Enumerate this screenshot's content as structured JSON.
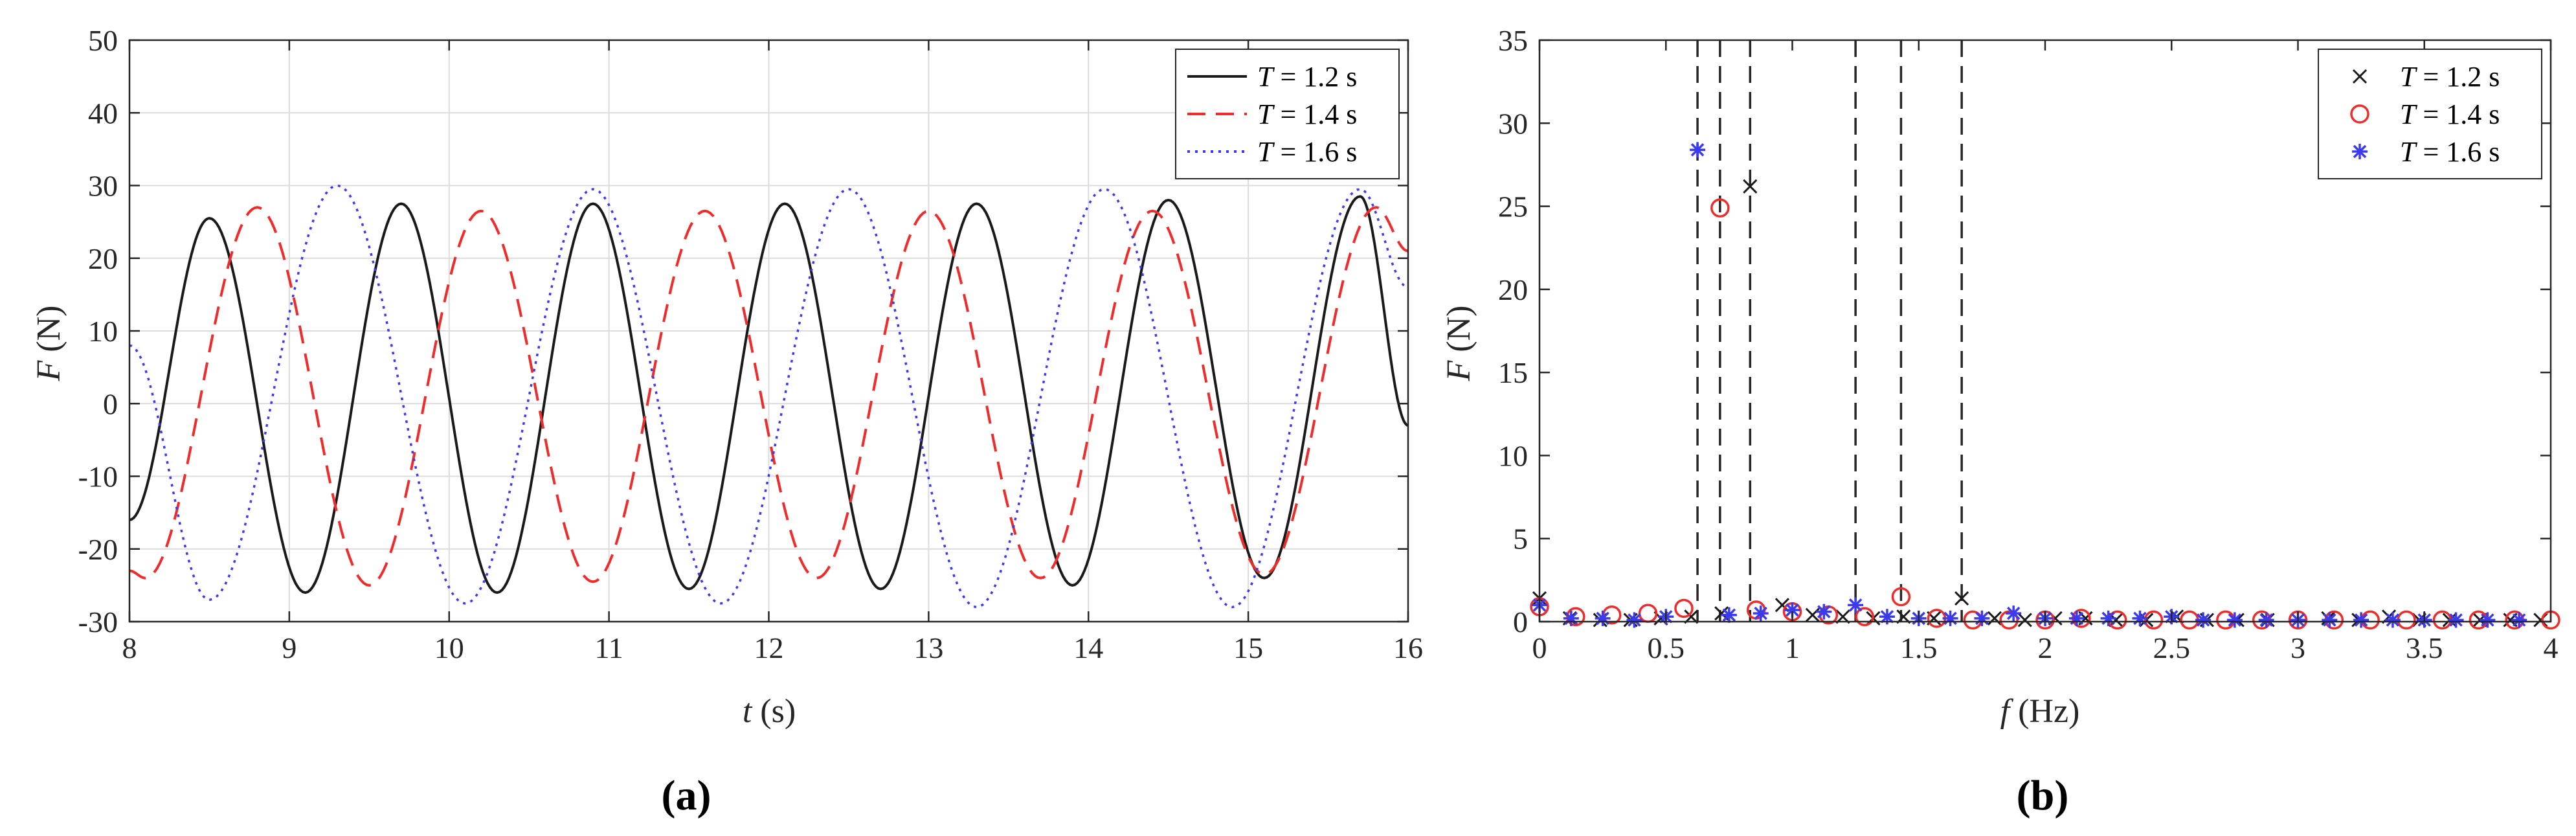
{
  "colors": {
    "black": "#1a1a1a",
    "red": "#ee2c2c",
    "blue": "#3a3af0",
    "grid": "#dcdcdc",
    "axis": "#262626"
  },
  "chart_data": [
    {
      "panel": "(a)",
      "type": "line",
      "xlabel": "t (s)",
      "ylabel": "F (N)",
      "xlim": [
        8,
        16
      ],
      "ylim": [
        -30,
        50
      ],
      "xticks": [
        8,
        9,
        10,
        11,
        12,
        13,
        14,
        15,
        16
      ],
      "yticks": [
        -30,
        -20,
        -10,
        0,
        10,
        20,
        30,
        40,
        50
      ],
      "grid": true,
      "legend_position": "top-right",
      "series": [
        {
          "name": "T = 1.2 s",
          "style": "solid",
          "color": "#1a1a1a",
          "x": [
            8.0,
            8.5,
            9.1,
            9.7,
            10.3,
            10.9,
            11.5,
            12.1,
            12.7,
            13.3,
            13.9,
            14.5,
            15.1,
            15.7,
            16.0
          ],
          "y": [
            -16,
            25.5,
            -26,
            27.5,
            -26,
            27.5,
            -25.5,
            27.5,
            -25.5,
            27.5,
            -25,
            28,
            -24,
            28.5,
            -3
          ]
        },
        {
          "name": "T = 1.4 s",
          "style": "dashed",
          "color": "#ee2c2c",
          "x": [
            8.0,
            8.1,
            8.8,
            9.5,
            10.2,
            10.9,
            11.6,
            12.3,
            13.0,
            13.7,
            14.4,
            15.1,
            15.8,
            16.0
          ],
          "y": [
            -23,
            -24,
            27,
            -25,
            26.5,
            -24.5,
            26.5,
            -24,
            26.5,
            -24,
            26.5,
            -23.5,
            27,
            21
          ]
        },
        {
          "name": "T = 1.6 s",
          "style": "dotted",
          "color": "#3a3af0",
          "x": [
            8.0,
            8.5,
            9.3,
            10.1,
            10.9,
            11.7,
            12.5,
            13.3,
            14.1,
            14.9,
            15.7,
            16.0
          ],
          "y": [
            8,
            -27,
            30,
            -27.5,
            29.5,
            -27.5,
            29.5,
            -28,
            29.5,
            -28,
            29.5,
            16
          ]
        }
      ]
    },
    {
      "panel": "(b)",
      "type": "scatter",
      "xlabel": "f (Hz)",
      "ylabel": "F (N)",
      "xlim": [
        0,
        4
      ],
      "ylim": [
        0,
        35
      ],
      "xticks": [
        0,
        0.5,
        1,
        1.5,
        2,
        2.5,
        3,
        3.5,
        4
      ],
      "yticks": [
        0,
        5,
        10,
        15,
        20,
        25,
        30,
        35
      ],
      "grid": false,
      "legend_position": "top-right",
      "vertical_dashed_lines": [
        0.625,
        0.714,
        0.833,
        1.25,
        1.43,
        1.67
      ],
      "series": [
        {
          "name": "T = 1.2 s",
          "marker": "x",
          "color": "#1a1a1a",
          "x": [
            0.0,
            0.12,
            0.24,
            0.36,
            0.48,
            0.6,
            0.72,
            0.833,
            0.96,
            1.08,
            1.2,
            1.32,
            1.44,
            1.56,
            1.67,
            1.8,
            1.92,
            2.04,
            2.16,
            2.28,
            2.4,
            2.52,
            2.64,
            2.76,
            2.88,
            3.0,
            3.12,
            3.24,
            3.36,
            3.48,
            3.6,
            3.72,
            3.84,
            3.96
          ],
          "y": [
            1.4,
            0.2,
            0.1,
            0.1,
            0.2,
            0.3,
            0.5,
            26.2,
            1.0,
            0.4,
            0.3,
            0.2,
            0.3,
            0.2,
            1.4,
            0.2,
            0.1,
            0.2,
            0.2,
            0.1,
            0.1,
            0.3,
            0.1,
            0.1,
            0.1,
            0.1,
            0.2,
            0.1,
            0.3,
            0.1,
            0.1,
            0.1,
            0.1,
            0.1
          ]
        },
        {
          "name": "T = 1.4 s",
          "marker": "o",
          "color": "#ee2c2c",
          "x": [
            0.0,
            0.143,
            0.286,
            0.429,
            0.571,
            0.714,
            0.857,
            1.0,
            1.143,
            1.286,
            1.43,
            1.571,
            1.714,
            1.857,
            2.0,
            2.143,
            2.286,
            2.429,
            2.571,
            2.714,
            2.857,
            3.0,
            3.143,
            3.286,
            3.429,
            3.571,
            3.714,
            3.857,
            4.0
          ],
          "y": [
            0.9,
            0.3,
            0.4,
            0.5,
            0.8,
            24.9,
            0.7,
            0.6,
            0.4,
            0.3,
            1.5,
            0.2,
            0.1,
            0.1,
            0.1,
            0.2,
            0.1,
            0.1,
            0.1,
            0.1,
            0.1,
            0.1,
            0.1,
            0.1,
            0.1,
            0.1,
            0.1,
            0.1,
            0.1
          ]
        },
        {
          "name": "T = 1.6 s",
          "marker": "*",
          "color": "#3a3af0",
          "x": [
            0.0,
            0.125,
            0.25,
            0.375,
            0.5,
            0.625,
            0.75,
            0.875,
            1.0,
            1.125,
            1.25,
            1.375,
            1.5,
            1.625,
            1.75,
            1.875,
            2.0,
            2.125,
            2.25,
            2.375,
            2.5,
            2.625,
            2.75,
            2.875,
            3.0,
            3.125,
            3.25,
            3.375,
            3.5,
            3.625,
            3.75,
            3.875
          ],
          "y": [
            1.0,
            0.2,
            0.2,
            0.1,
            0.3,
            28.4,
            0.4,
            0.5,
            0.7,
            0.6,
            1.0,
            0.3,
            0.2,
            0.2,
            0.2,
            0.5,
            0.2,
            0.2,
            0.2,
            0.2,
            0.3,
            0.1,
            0.1,
            0.1,
            0.1,
            0.1,
            0.1,
            0.1,
            0.1,
            0.1,
            0.1,
            0.1
          ]
        }
      ]
    }
  ]
}
